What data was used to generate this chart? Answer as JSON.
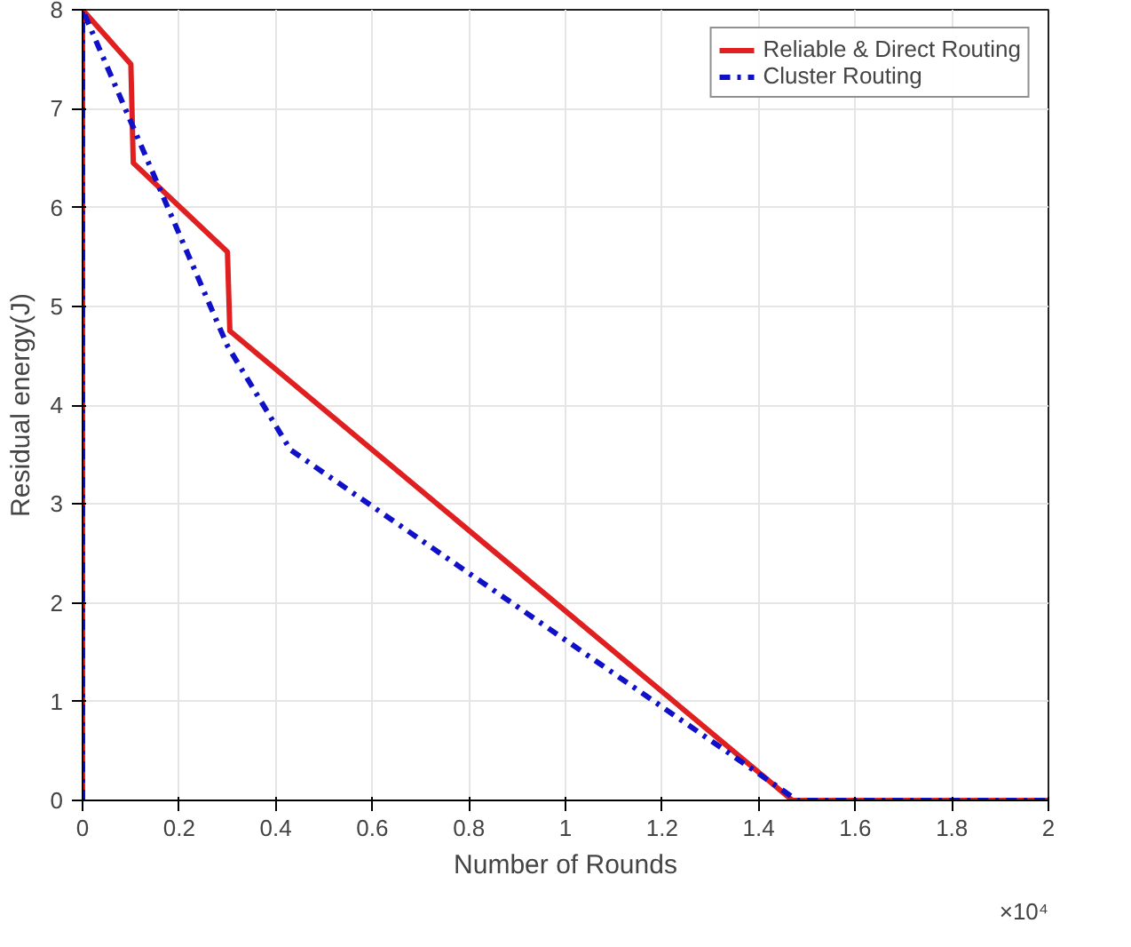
{
  "chart_data": {
    "type": "line",
    "xlabel": "Number of Rounds",
    "ylabel": "Residual energy(J)",
    "xlim": [
      0,
      2
    ],
    "xticks": [
      0,
      0.2,
      0.4,
      0.6,
      0.8,
      1,
      1.2,
      1.4,
      1.6,
      1.8,
      2
    ],
    "ylim": [
      0,
      8
    ],
    "yticks": [
      0,
      1,
      2,
      3,
      4,
      5,
      6,
      7,
      8
    ],
    "series": [
      {
        "name": "Reliable & Direct Routing",
        "color": "#e02020",
        "line_style": "solid",
        "x": [
          0,
          0,
          0.1,
          0.105,
          0.3,
          0.305,
          1.47,
          2
        ],
        "values": [
          0,
          8,
          7.45,
          6.45,
          5.55,
          4.75,
          0,
          0
        ]
      },
      {
        "name": "Cluster Routing",
        "color": "#1010c8",
        "line_style": "dashdot",
        "x": [
          0,
          0,
          0.3,
          0.43,
          1.48,
          2
        ],
        "values": [
          0,
          8,
          4.6,
          3.55,
          0,
          0
        ]
      }
    ],
    "annotations": [
      "×10⁴"
    ],
    "grid": true,
    "legend": "top right"
  }
}
